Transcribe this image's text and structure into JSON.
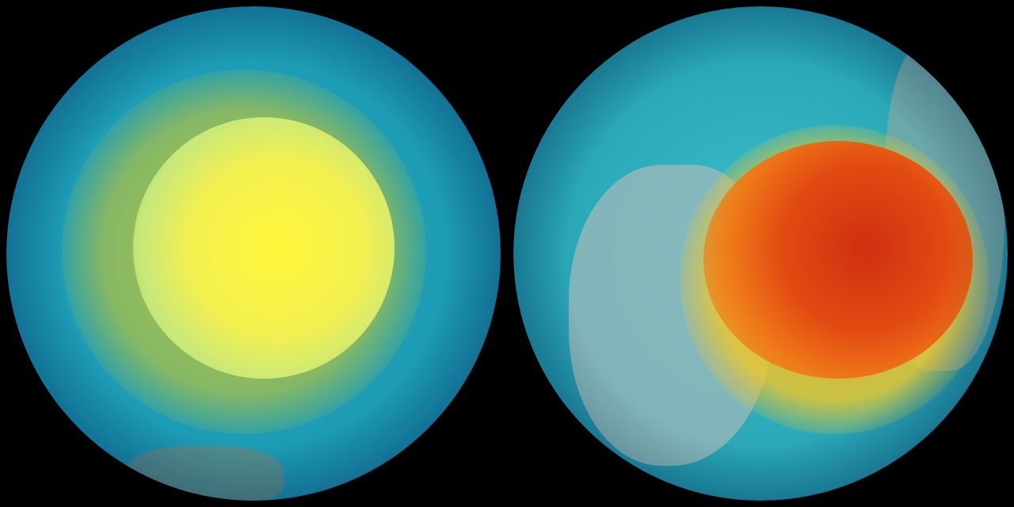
{
  "globes": [
    {
      "colors": {
        "ocean": "#1a9bb8",
        "edge": "#0d4f7a",
        "core": "#fff23a",
        "ring": "#c9c830"
      }
    },
    {
      "colors": {
        "ocean": "#2aa8b8",
        "edge": "#0f4f6f",
        "land": "#8fb3b8",
        "core": "#e24a12",
        "ring": "#f3a51c"
      }
    }
  ]
}
